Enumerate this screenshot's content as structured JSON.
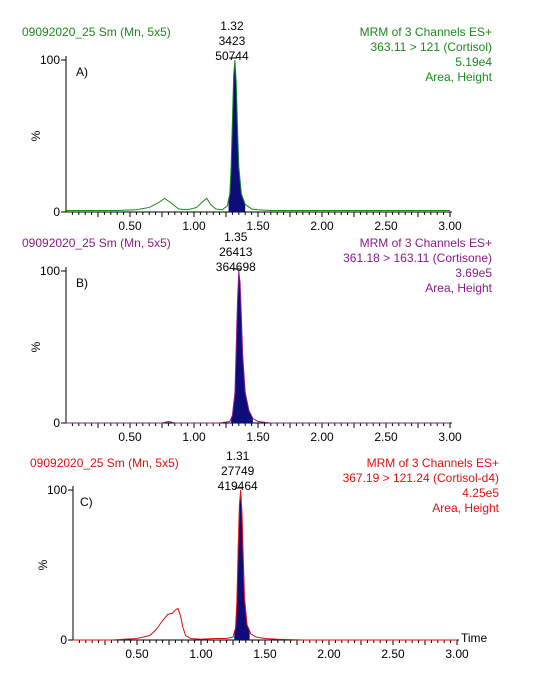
{
  "chart_data": [
    {
      "type": "line",
      "panel_label": "A)",
      "sample": "09092020_25 Sm (Mn, 5x5)",
      "header_lines": [
        "MRM of 3 Channels ES+",
        "363.11 > 121 (Cortisol)",
        "5.19e4",
        "Area, Height"
      ],
      "color": "#1a8a1a",
      "peak_labels": [
        "1.32",
        "3423",
        "50744"
      ],
      "peak": {
        "rt": 1.32,
        "left": 1.27,
        "right": 1.4
      },
      "xlim": [
        0.0,
        3.0
      ],
      "ylim": [
        0,
        100
      ],
      "ylabel": "%",
      "y_ticks": [
        "100",
        "0"
      ],
      "x_tick_labels": [
        "0.50",
        "1.00",
        "1.50",
        "2.00",
        "2.50",
        "3.00"
      ],
      "x": [
        0.0,
        0.2,
        0.4,
        0.55,
        0.65,
        0.72,
        0.77,
        0.82,
        0.88,
        0.95,
        1.02,
        1.07,
        1.1,
        1.13,
        1.17,
        1.22,
        1.26,
        1.28,
        1.29,
        1.3,
        1.31,
        1.32,
        1.33,
        1.34,
        1.35,
        1.37,
        1.4,
        1.45,
        1.5,
        1.6,
        1.8,
        2.0,
        2.3,
        2.6,
        3.0
      ],
      "y": [
        1,
        1,
        1,
        1.5,
        3,
        6,
        9,
        6,
        2,
        1.5,
        3,
        7,
        9,
        5,
        2,
        1.5,
        4,
        12,
        30,
        60,
        90,
        100,
        85,
        55,
        30,
        12,
        5,
        2,
        1.5,
        1,
        1,
        1,
        1,
        1,
        1
      ]
    },
    {
      "type": "line",
      "panel_label": "B)",
      "sample": "09092020_25 Sm (Mn, 5x5)",
      "header_lines": [
        "MRM of 3 Channels ES+",
        "361.18 > 163.11 (Cortisone)",
        "3.69e5",
        "Area, Height"
      ],
      "color": "#8b1a8b",
      "peak_labels": [
        "1.35",
        "26413",
        "364698"
      ],
      "peak": {
        "rt": 1.35,
        "left": 1.29,
        "right": 1.46
      },
      "xlim": [
        0.0,
        3.0
      ],
      "ylim": [
        0,
        100
      ],
      "ylabel": "%",
      "y_ticks": [
        "100",
        "0"
      ],
      "x_tick_labels": [
        "0.50",
        "1.00",
        "1.50",
        "2.00",
        "2.50",
        "3.00"
      ],
      "x": [
        0.0,
        0.5,
        0.75,
        0.8,
        0.85,
        1.0,
        1.2,
        1.28,
        1.3,
        1.32,
        1.33,
        1.34,
        1.35,
        1.36,
        1.37,
        1.38,
        1.4,
        1.43,
        1.46,
        1.5,
        1.6,
        2.0,
        2.5,
        3.0
      ],
      "y": [
        0,
        0,
        0,
        1,
        0,
        0,
        0,
        1,
        5,
        20,
        50,
        80,
        100,
        92,
        70,
        45,
        20,
        8,
        3,
        1,
        0,
        0,
        0,
        0
      ]
    },
    {
      "type": "line",
      "panel_label": "C)",
      "sample": "09092020_25 Sm (Mn, 5x5)",
      "header_lines": [
        "MRM of 3 Channels ES+",
        "367.19 > 121.24 (Cortisol-d4)",
        "4.25e5",
        "Area, Height"
      ],
      "color": "#e01010",
      "peak_labels": [
        "1.31",
        "27749",
        "419464"
      ],
      "peak": {
        "rt": 1.31,
        "left": 1.26,
        "right": 1.38
      },
      "xlim": [
        0.0,
        3.0
      ],
      "ylim": [
        0,
        100
      ],
      "ylabel": "%",
      "y_ticks": [
        "100",
        "0"
      ],
      "x_tick_labels": [
        "0.50",
        "1.00",
        "1.50",
        "2.00",
        "2.50",
        "3.00"
      ],
      "xlabel": "Time",
      "x": [
        0.0,
        0.3,
        0.5,
        0.6,
        0.65,
        0.7,
        0.74,
        0.78,
        0.8,
        0.82,
        0.84,
        0.86,
        0.88,
        0.92,
        1.0,
        1.1,
        1.2,
        1.25,
        1.27,
        1.28,
        1.29,
        1.3,
        1.31,
        1.32,
        1.33,
        1.34,
        1.36,
        1.39,
        1.43,
        1.5,
        1.6,
        1.8,
        2.2,
        2.6,
        3.0
      ],
      "y": [
        0,
        0,
        1,
        3,
        7,
        13,
        17,
        18,
        20,
        21,
        16,
        8,
        3,
        1,
        0.5,
        1,
        1,
        2,
        8,
        25,
        60,
        90,
        100,
        85,
        55,
        28,
        10,
        4,
        2,
        1,
        0.5,
        0,
        0,
        0,
        0
      ]
    }
  ]
}
